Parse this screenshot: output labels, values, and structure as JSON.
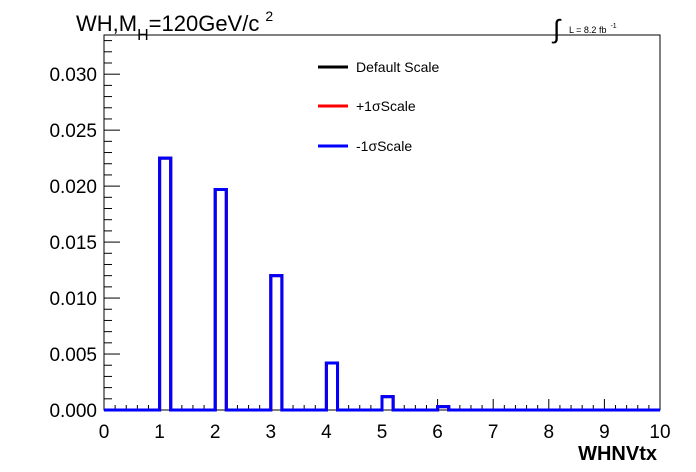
{
  "title": {
    "main": "WH,M",
    "subscript": "H",
    "rest": "=120GeV/c",
    "superscript": "2"
  },
  "lumi": {
    "symbol": "∫",
    "text": "L = 8.2 fb",
    "superscript": "-1"
  },
  "chart_data": {
    "type": "line",
    "style": "step-histogram",
    "xlabel": "WHNVtx",
    "ylabel": "",
    "xlim": [
      0,
      10
    ],
    "ylim": [
      0,
      0.0335
    ],
    "grid": false,
    "legend_position": "top-center",
    "bins_x_start": [
      0,
      0.2,
      0.4,
      0.6,
      0.8,
      1.0,
      1.2,
      1.4,
      1.6,
      1.8,
      2.0,
      2.2,
      2.4,
      2.6,
      2.8,
      3.0,
      3.2,
      3.4,
      3.6,
      3.8,
      4.0,
      4.2,
      4.4,
      4.6,
      4.8,
      5.0,
      5.2,
      5.4,
      5.6,
      5.8,
      6.0,
      6.2,
      6.4,
      6.6,
      6.8,
      7.0,
      7.2,
      7.4,
      7.6,
      7.8,
      8.0,
      8.2,
      8.4,
      8.6,
      8.8,
      9.0,
      9.2,
      9.4,
      9.6,
      9.8
    ],
    "bin_width": 0.2,
    "series": [
      {
        "name": "Default Scale",
        "color": "#000000",
        "values": [
          0,
          0,
          0,
          0,
          0,
          0.0225,
          0,
          0,
          0,
          0,
          0.0197,
          0,
          0,
          0,
          0,
          0.012,
          0,
          0,
          0,
          0,
          0.0042,
          0,
          0,
          0,
          0,
          0.0012,
          0,
          0,
          0,
          0,
          0.0003,
          0,
          0,
          0,
          0,
          0,
          0,
          0,
          0,
          0,
          0,
          0,
          0,
          0,
          0,
          0,
          0,
          0,
          0,
          0
        ]
      },
      {
        "name": "+1σScale",
        "color": "#ff0000",
        "values": [
          0,
          0,
          0,
          0,
          0,
          0.0225,
          0,
          0,
          0,
          0,
          0.0197,
          0,
          0,
          0,
          0,
          0.012,
          0,
          0,
          0,
          0,
          0.0042,
          0,
          0,
          0,
          0,
          0.0012,
          0,
          0,
          0,
          0,
          0.0003,
          0,
          0,
          0,
          0,
          0,
          0,
          0,
          0,
          0,
          0,
          0,
          0,
          0,
          0,
          0,
          0,
          0,
          0,
          0
        ]
      },
      {
        "name": "-1σScale",
        "color": "#0000ff",
        "values": [
          0,
          0,
          0,
          0,
          0,
          0.0225,
          0,
          0,
          0,
          0,
          0.0197,
          0,
          0,
          0,
          0,
          0.012,
          0,
          0,
          0,
          0,
          0.0042,
          0,
          0,
          0,
          0,
          0.0012,
          0,
          0,
          0,
          0,
          0.0003,
          0,
          0,
          0,
          0,
          0,
          0,
          0,
          0,
          0,
          0,
          0,
          0,
          0,
          0,
          0,
          0,
          0,
          0,
          0
        ]
      }
    ],
    "x_ticks": [
      0,
      1,
      2,
      3,
      4,
      5,
      6,
      7,
      8,
      9,
      10
    ],
    "x_tick_labels": [
      "0",
      "1",
      "2",
      "3",
      "4",
      "5",
      "6",
      "7",
      "8",
      "9",
      "10"
    ],
    "y_ticks": [
      0,
      0.005,
      0.01,
      0.015,
      0.02,
      0.025,
      0.03
    ],
    "y_tick_labels": [
      "0.000",
      "0.005",
      "0.010",
      "0.015",
      "0.020",
      "0.025",
      "0.030"
    ]
  }
}
